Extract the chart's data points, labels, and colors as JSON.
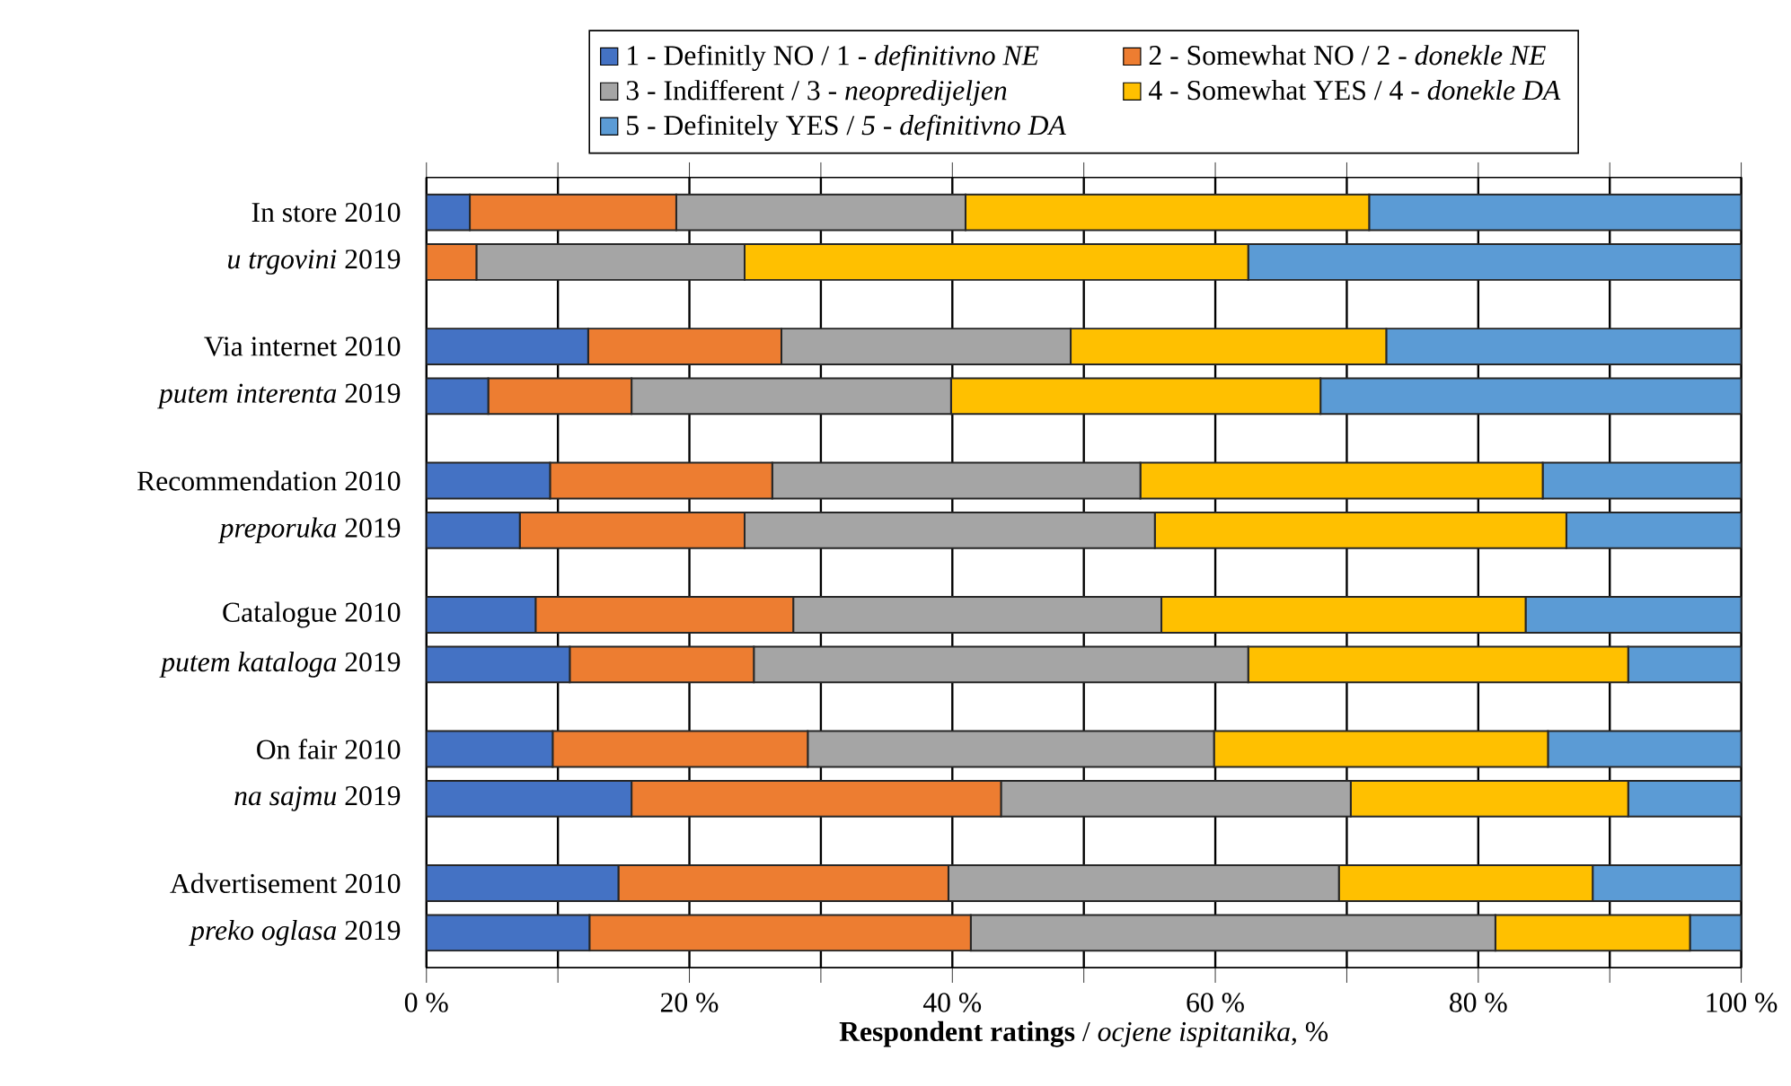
{
  "chart_data": {
    "type": "bar",
    "orientation": "horizontal",
    "stacked": true,
    "xlabel": "**Respondent ratings** / *ocjene ispitanika*, %",
    "categories": [
      "In store 2010",
      "*u trgovini* 2019",
      "Via internet 2010",
      "*putem interenta* 2019",
      "Recommendation 2010",
      "*preporuka* 2019",
      "Catalogue 2010",
      "*putem kataloga* 2019",
      "On fair 2010",
      "*na sajmu* 2019",
      "Advertisement 2010",
      "*preko oglasa* 2019"
    ],
    "series": [
      {
        "name": "1 - Definitly NO / 1 - *definitivno NE*",
        "color": "#4472c4",
        "values": [
          3.3,
          0,
          12.3,
          4.7,
          9.4,
          7.1,
          8.3,
          10.9,
          9.6,
          15.6,
          14.6,
          12.4
        ]
      },
      {
        "name": "2 - Somewhat NO / 2 - *donekle NE*",
        "color": "#ed7d31",
        "values": [
          15.7,
          3.8,
          14.7,
          10.9,
          16.9,
          17.1,
          19.6,
          14.0,
          19.4,
          28.1,
          25.1,
          29.0
        ]
      },
      {
        "name": "3 - Indifferent / 3 - *neopredijeljen*",
        "color": "#a5a5a5",
        "values": [
          22.0,
          20.4,
          22.0,
          24.3,
          28.0,
          31.2,
          28.0,
          37.6,
          30.9,
          26.6,
          29.7,
          39.9
        ]
      },
      {
        "name": "4 - Somewhat YES / 4 - *donekle DA*",
        "color": "#ffc000",
        "values": [
          30.7,
          38.3,
          24.0,
          28.1,
          30.6,
          31.3,
          27.7,
          28.9,
          25.4,
          21.1,
          19.3,
          14.8
        ]
      },
      {
        "name": "5 - Definitely YES / *5  - definitivno DA*",
        "color": "#5b9bd5",
        "values": [
          28.3,
          37.5,
          27.0,
          32.0,
          15.1,
          13.3,
          16.4,
          8.6,
          14.7,
          8.6,
          11.3,
          3.9
        ]
      }
    ],
    "xlim": [
      0,
      100
    ],
    "xticks": [
      {
        "value": 0,
        "label": "0 %"
      },
      {
        "value": 10,
        "label": null
      },
      {
        "value": 20,
        "label": "20 %"
      },
      {
        "value": 30,
        "label": null
      },
      {
        "value": 40,
        "label": "40 %"
      },
      {
        "value": 50,
        "label": null
      },
      {
        "value": 60,
        "label": "60 %"
      },
      {
        "value": 70,
        "label": null
      },
      {
        "value": 80,
        "label": "80 %"
      },
      {
        "value": 90,
        "label": null
      },
      {
        "value": 100,
        "label": "100 %"
      }
    ],
    "grid": "x",
    "legend": "top"
  }
}
